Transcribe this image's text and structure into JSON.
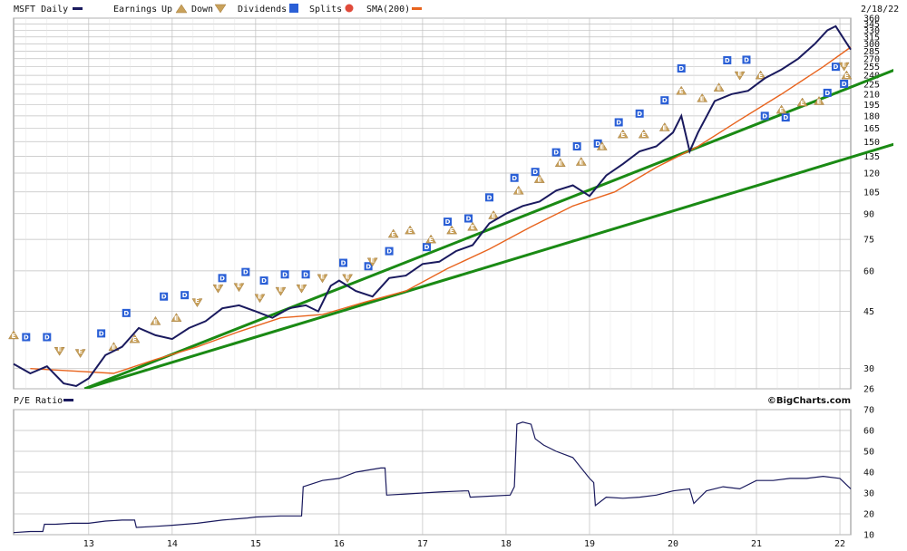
{
  "legend": {
    "symbol": "MSFT Daily",
    "earnings": "Earnings",
    "up": "Up",
    "down": "Down",
    "dividends": "Dividends",
    "splits": "Splits",
    "sma": "SMA(200)",
    "date": "2/18/22",
    "pe_label": "P/E Ratio",
    "brand": "©BigCharts.com"
  },
  "colors": {
    "price": "#1a1a5e",
    "sma": "#e8641e",
    "trend": "#1a8a14",
    "dividend": "#2a5fd6",
    "earnings": "#c9a15a",
    "grid": "#bfbfbf",
    "split": "#e04a3a"
  },
  "chart_data": [
    {
      "type": "line",
      "name": "price",
      "scale": "log",
      "x_ticks": [
        "13",
        "14",
        "15",
        "16",
        "17",
        "18",
        "19",
        "20",
        "21",
        "22"
      ],
      "y_ticks": [
        26,
        30,
        45,
        60,
        75,
        90,
        105,
        120,
        135,
        150,
        165,
        180,
        195,
        210,
        225,
        240,
        255,
        270,
        285,
        300,
        315,
        330,
        345,
        360
      ],
      "ylim": [
        26,
        360
      ],
      "xlim": [
        2012.1,
        2022.13
      ],
      "series": [
        {
          "x": [
            2012.1,
            2012.3,
            2012.5,
            2012.7,
            2012.85,
            2013.0,
            2013.2,
            2013.4,
            2013.6,
            2013.8,
            2014.0,
            2014.2,
            2014.4,
            2014.6,
            2014.8,
            2015.0,
            2015.2,
            2015.4,
            2015.6,
            2015.75,
            2015.9,
            2016.0,
            2016.2,
            2016.4,
            2016.6,
            2016.8,
            2017.0,
            2017.2,
            2017.4,
            2017.6,
            2017.8,
            2018.0,
            2018.2,
            2018.4,
            2018.6,
            2018.8,
            2019.0,
            2019.2,
            2019.4,
            2019.6,
            2019.8,
            2020.0,
            2020.1,
            2020.2,
            2020.3,
            2020.5,
            2020.7,
            2020.9,
            2021.1,
            2021.3,
            2021.5,
            2021.7,
            2021.85,
            2021.95,
            2022.05,
            2022.13
          ],
          "y": [
            31,
            29,
            30.5,
            27,
            26.5,
            28,
            33,
            35,
            40,
            38,
            37,
            40,
            42,
            46,
            47,
            45,
            43,
            46,
            47,
            45,
            54,
            56,
            52,
            50,
            57,
            58,
            63,
            64,
            69,
            72,
            84,
            90,
            95,
            98,
            106,
            110,
            102,
            118,
            128,
            140,
            145,
            160,
            180,
            140,
            160,
            200,
            210,
            215,
            235,
            250,
            270,
            300,
            330,
            340,
            310,
            288
          ]
        },
        {
          "x": [
            2012.3,
            2012.8,
            2013.3,
            2013.8,
            2014.3,
            2014.8,
            2015.3,
            2015.8,
            2016.3,
            2016.8,
            2017.3,
            2017.8,
            2018.3,
            2018.8,
            2019.3,
            2019.8,
            2020.3,
            2020.8,
            2021.3,
            2021.8,
            2022.13
          ],
          "y": [
            30,
            29.5,
            29,
            32,
            35,
            39,
            43,
            44,
            48,
            52,
            61,
            70,
            82,
            95,
            105,
            125,
            145,
            175,
            210,
            255,
            293
          ]
        }
      ],
      "series_names": [
        "price",
        "SMA(200)"
      ],
      "trendlines": [
        {
          "x": [
            2012.95,
            2022.75
          ],
          "y": [
            26,
            255
          ]
        },
        {
          "x": [
            2012.95,
            2022.75
          ],
          "y": [
            26,
            150
          ]
        }
      ],
      "dividends": [
        {
          "x": 2012.25,
          "y": 37.5
        },
        {
          "x": 2012.5,
          "y": 37.5
        },
        {
          "x": 2013.15,
          "y": 38.5
        },
        {
          "x": 2013.45,
          "y": 44.5
        },
        {
          "x": 2013.9,
          "y": 50
        },
        {
          "x": 2014.15,
          "y": 50.5
        },
        {
          "x": 2014.6,
          "y": 57
        },
        {
          "x": 2014.88,
          "y": 59.5
        },
        {
          "x": 2015.1,
          "y": 56
        },
        {
          "x": 2015.35,
          "y": 58.5
        },
        {
          "x": 2015.6,
          "y": 58.5
        },
        {
          "x": 2016.05,
          "y": 63.5
        },
        {
          "x": 2016.35,
          "y": 62
        },
        {
          "x": 2016.6,
          "y": 69
        },
        {
          "x": 2017.05,
          "y": 71
        },
        {
          "x": 2017.3,
          "y": 85
        },
        {
          "x": 2017.55,
          "y": 87
        },
        {
          "x": 2017.8,
          "y": 101
        },
        {
          "x": 2018.1,
          "y": 116
        },
        {
          "x": 2018.35,
          "y": 121
        },
        {
          "x": 2018.6,
          "y": 139
        },
        {
          "x": 2018.85,
          "y": 145
        },
        {
          "x": 2019.1,
          "y": 148
        },
        {
          "x": 2019.35,
          "y": 172
        },
        {
          "x": 2019.6,
          "y": 183
        },
        {
          "x": 2019.9,
          "y": 201
        },
        {
          "x": 2020.1,
          "y": 252
        },
        {
          "x": 2020.65,
          "y": 267
        },
        {
          "x": 2020.88,
          "y": 268
        },
        {
          "x": 2021.1,
          "y": 180
        },
        {
          "x": 2021.35,
          "y": 178
        },
        {
          "x": 2021.85,
          "y": 212
        },
        {
          "x": 2021.95,
          "y": 255
        },
        {
          "x": 2022.05,
          "y": 226
        }
      ],
      "earnings": [
        {
          "x": 2012.1,
          "y": 38,
          "dir": "up"
        },
        {
          "x": 2012.65,
          "y": 34,
          "dir": "down"
        },
        {
          "x": 2012.9,
          "y": 33.5,
          "dir": "down"
        },
        {
          "x": 2013.3,
          "y": 35,
          "dir": "up"
        },
        {
          "x": 2013.55,
          "y": 37,
          "dir": "up"
        },
        {
          "x": 2013.8,
          "y": 42,
          "dir": "up"
        },
        {
          "x": 2014.05,
          "y": 43,
          "dir": "up"
        },
        {
          "x": 2014.3,
          "y": 48,
          "dir": "down"
        },
        {
          "x": 2014.55,
          "y": 53,
          "dir": "down"
        },
        {
          "x": 2014.8,
          "y": 53.5,
          "dir": "down"
        },
        {
          "x": 2015.05,
          "y": 49.5,
          "dir": "down"
        },
        {
          "x": 2015.3,
          "y": 52,
          "dir": "down"
        },
        {
          "x": 2015.55,
          "y": 53,
          "dir": "down"
        },
        {
          "x": 2015.8,
          "y": 57,
          "dir": "down"
        },
        {
          "x": 2016.1,
          "y": 57,
          "dir": "down"
        },
        {
          "x": 2016.4,
          "y": 64,
          "dir": "down"
        },
        {
          "x": 2016.65,
          "y": 78,
          "dir": "up"
        },
        {
          "x": 2016.85,
          "y": 80,
          "dir": "up"
        },
        {
          "x": 2017.1,
          "y": 75,
          "dir": "up"
        },
        {
          "x": 2017.35,
          "y": 80,
          "dir": "up"
        },
        {
          "x": 2017.6,
          "y": 82,
          "dir": "up"
        },
        {
          "x": 2017.85,
          "y": 89,
          "dir": "up"
        },
        {
          "x": 2018.15,
          "y": 106,
          "dir": "up"
        },
        {
          "x": 2018.4,
          "y": 115,
          "dir": "up"
        },
        {
          "x": 2018.65,
          "y": 129,
          "dir": "up"
        },
        {
          "x": 2018.9,
          "y": 130,
          "dir": "up"
        },
        {
          "x": 2019.15,
          "y": 145,
          "dir": "up"
        },
        {
          "x": 2019.4,
          "y": 158,
          "dir": "up"
        },
        {
          "x": 2019.65,
          "y": 158,
          "dir": "up"
        },
        {
          "x": 2019.9,
          "y": 166,
          "dir": "up"
        },
        {
          "x": 2020.1,
          "y": 215,
          "dir": "up"
        },
        {
          "x": 2020.35,
          "y": 204,
          "dir": "up"
        },
        {
          "x": 2020.55,
          "y": 220,
          "dir": "up"
        },
        {
          "x": 2020.8,
          "y": 240,
          "dir": "down"
        },
        {
          "x": 2021.05,
          "y": 240,
          "dir": "up"
        },
        {
          "x": 2021.3,
          "y": 188,
          "dir": "up"
        },
        {
          "x": 2021.55,
          "y": 198,
          "dir": "up"
        },
        {
          "x": 2021.75,
          "y": 200,
          "dir": "up"
        },
        {
          "x": 2022.05,
          "y": 256,
          "dir": "down"
        },
        {
          "x": 2022.08,
          "y": 240,
          "dir": "up"
        }
      ]
    },
    {
      "type": "line",
      "name": "pe_ratio",
      "x_ticks": [
        "13",
        "14",
        "15",
        "16",
        "17",
        "18",
        "19",
        "20",
        "21",
        "22"
      ],
      "y_ticks": [
        10,
        20,
        30,
        40,
        50,
        60,
        70
      ],
      "ylim": [
        10,
        70
      ],
      "xlim": [
        2012.1,
        2022.13
      ],
      "x": [
        2012.1,
        2012.3,
        2012.45,
        2012.47,
        2012.6,
        2012.8,
        2013.0,
        2013.2,
        2013.4,
        2013.55,
        2013.57,
        2013.8,
        2014.0,
        2014.3,
        2014.6,
        2014.9,
        2015.0,
        2015.3,
        2015.55,
        2015.57,
        2015.8,
        2016.0,
        2016.2,
        2016.5,
        2016.55,
        2016.57,
        2016.8,
        2017.0,
        2017.2,
        2017.5,
        2017.55,
        2017.57,
        2017.8,
        2018.05,
        2018.1,
        2018.13,
        2018.2,
        2018.3,
        2018.35,
        2018.45,
        2018.6,
        2018.8,
        2019.0,
        2019.05,
        2019.07,
        2019.2,
        2019.4,
        2019.6,
        2019.8,
        2020.0,
        2020.2,
        2020.25,
        2020.4,
        2020.6,
        2020.8,
        2021.0,
        2021.2,
        2021.4,
        2021.6,
        2021.8,
        2022.0,
        2022.13
      ],
      "y": [
        11,
        11.5,
        11.5,
        15,
        15,
        15.5,
        15.5,
        16.5,
        17,
        17,
        13.5,
        14,
        14.5,
        15.5,
        17,
        18,
        18.5,
        19,
        19,
        33,
        36,
        37,
        40,
        42,
        42,
        29,
        29.5,
        30,
        30.5,
        31,
        31,
        28,
        28.5,
        29,
        33,
        63,
        64,
        63,
        56,
        53,
        50,
        47,
        37,
        35,
        24,
        28,
        27.5,
        28,
        29,
        31,
        32,
        25,
        31,
        33,
        32,
        36,
        36,
        37,
        37,
        38,
        37,
        32
      ]
    }
  ]
}
